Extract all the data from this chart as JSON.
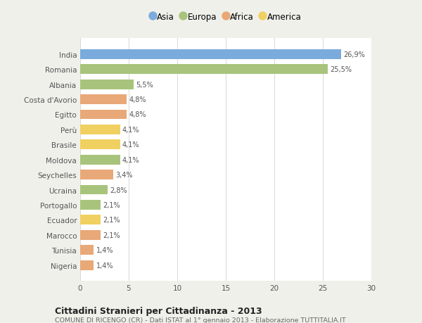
{
  "categories": [
    "Nigeria",
    "Tunisia",
    "Marocco",
    "Ecuador",
    "Portogallo",
    "Ucraina",
    "Seychelles",
    "Moldova",
    "Brasile",
    "Perù",
    "Egitto",
    "Costa d'Avorio",
    "Albania",
    "Romania",
    "India"
  ],
  "values": [
    1.4,
    1.4,
    2.1,
    2.1,
    2.1,
    2.8,
    3.4,
    4.1,
    4.1,
    4.1,
    4.8,
    4.8,
    5.5,
    25.5,
    26.9
  ],
  "labels": [
    "1,4%",
    "1,4%",
    "2,1%",
    "2,1%",
    "2,1%",
    "2,8%",
    "3,4%",
    "4,1%",
    "4,1%",
    "4,1%",
    "4,8%",
    "4,8%",
    "5,5%",
    "25,5%",
    "26,9%"
  ],
  "continents": [
    "Africa",
    "Africa",
    "Africa",
    "America",
    "Europa",
    "Europa",
    "Africa",
    "Europa",
    "America",
    "America",
    "Africa",
    "Africa",
    "Europa",
    "Europa",
    "Asia"
  ],
  "colors": {
    "Asia": "#7aabdc",
    "Europa": "#a8c47c",
    "Africa": "#e8a878",
    "America": "#f0d060"
  },
  "legend_labels": [
    "Asia",
    "Europa",
    "Africa",
    "America"
  ],
  "legend_colors": [
    "#7aabdc",
    "#a8c47c",
    "#e8a878",
    "#f0d060"
  ],
  "xlim": [
    0,
    30
  ],
  "xticks": [
    0,
    5,
    10,
    15,
    20,
    25,
    30
  ],
  "title": "Cittadini Stranieri per Cittadinanza - 2013",
  "subtitle": "COMUNE DI RICENGO (CR) - Dati ISTAT al 1° gennaio 2013 - Elaborazione TUTTITALIA.IT",
  "background_color": "#f0f0eb",
  "bar_background": "#ffffff",
  "grid_color": "#d8d8d8",
  "text_color": "#555555",
  "bar_height": 0.65
}
